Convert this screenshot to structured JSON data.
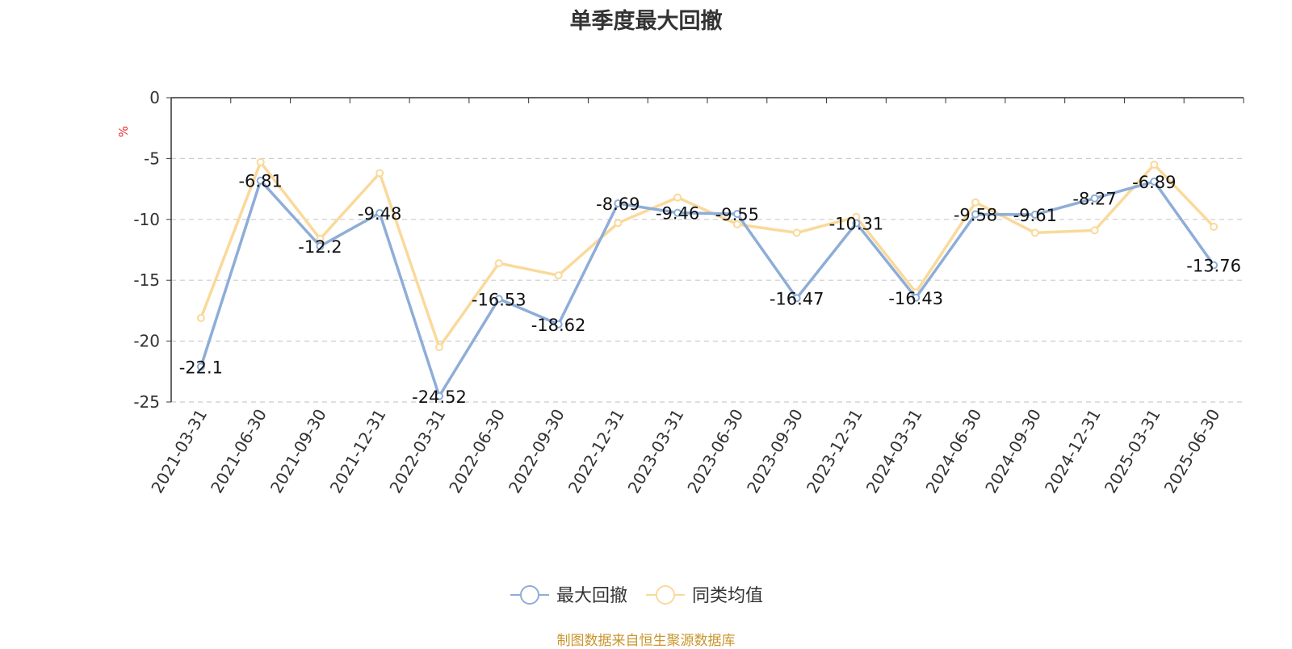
{
  "chart_data": {
    "type": "line",
    "title": "单季度最大回撤",
    "ylabel": "%",
    "ylim": [
      -25,
      0
    ],
    "yticks": [
      0,
      -5,
      -10,
      -15,
      -20,
      -25
    ],
    "grid": true,
    "legend_position": "bottom-center",
    "categories": [
      "2021-03-31",
      "2021-06-30",
      "2021-09-30",
      "2021-12-31",
      "2022-03-31",
      "2022-06-30",
      "2022-09-30",
      "2022-12-31",
      "2023-03-31",
      "2023-06-30",
      "2023-09-30",
      "2023-12-31",
      "2024-03-31",
      "2024-06-30",
      "2024-09-30",
      "2024-12-31",
      "2025-03-31",
      "2025-06-30"
    ],
    "series": [
      {
        "name": "最大回撤",
        "color": "#8eadd8",
        "show_labels": true,
        "values": [
          -22.1,
          -6.81,
          -12.2,
          -9.48,
          -24.52,
          -16.53,
          -18.62,
          -8.69,
          -9.46,
          -9.55,
          -16.47,
          -10.31,
          -16.43,
          -9.58,
          -9.61,
          -8.27,
          -6.89,
          -13.76
        ]
      },
      {
        "name": "同类均值",
        "color": "#fad99a",
        "show_labels": false,
        "values": [
          -18.1,
          -5.3,
          -11.6,
          -6.2,
          -20.5,
          -13.6,
          -14.6,
          -10.3,
          -8.2,
          -10.4,
          -11.1,
          -9.8,
          -16.0,
          -8.6,
          -11.1,
          -10.9,
          -5.5,
          -10.6
        ]
      }
    ]
  },
  "source": "制图数据来自恒生聚源数据库"
}
